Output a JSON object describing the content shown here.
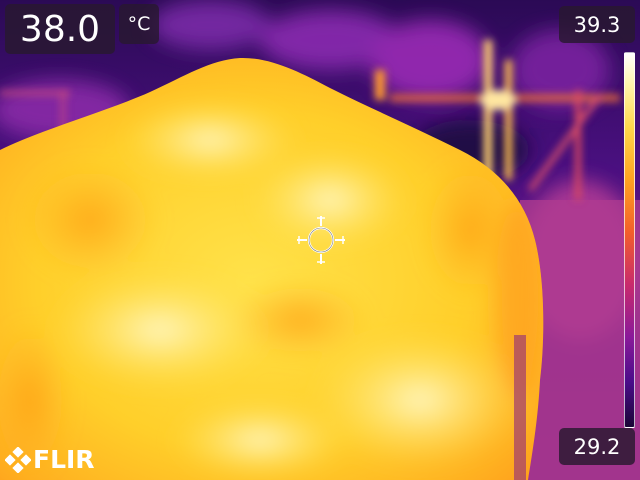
{
  "measurement": {
    "spot_value": "38.0",
    "unit": "°C"
  },
  "scale": {
    "max": "39.3",
    "min": "29.2",
    "palette": [
      "#ffffff",
      "#fff6b0",
      "#ffd84a",
      "#ffa21f",
      "#f35e2a",
      "#c82a6d",
      "#8a1a9a",
      "#4a0c8a",
      "#1a0536"
    ]
  },
  "crosshair": {
    "icon": "crosshair-icon"
  },
  "branding": {
    "logo_text": "FLIR",
    "logo_icon": "flir-logo-icon"
  }
}
